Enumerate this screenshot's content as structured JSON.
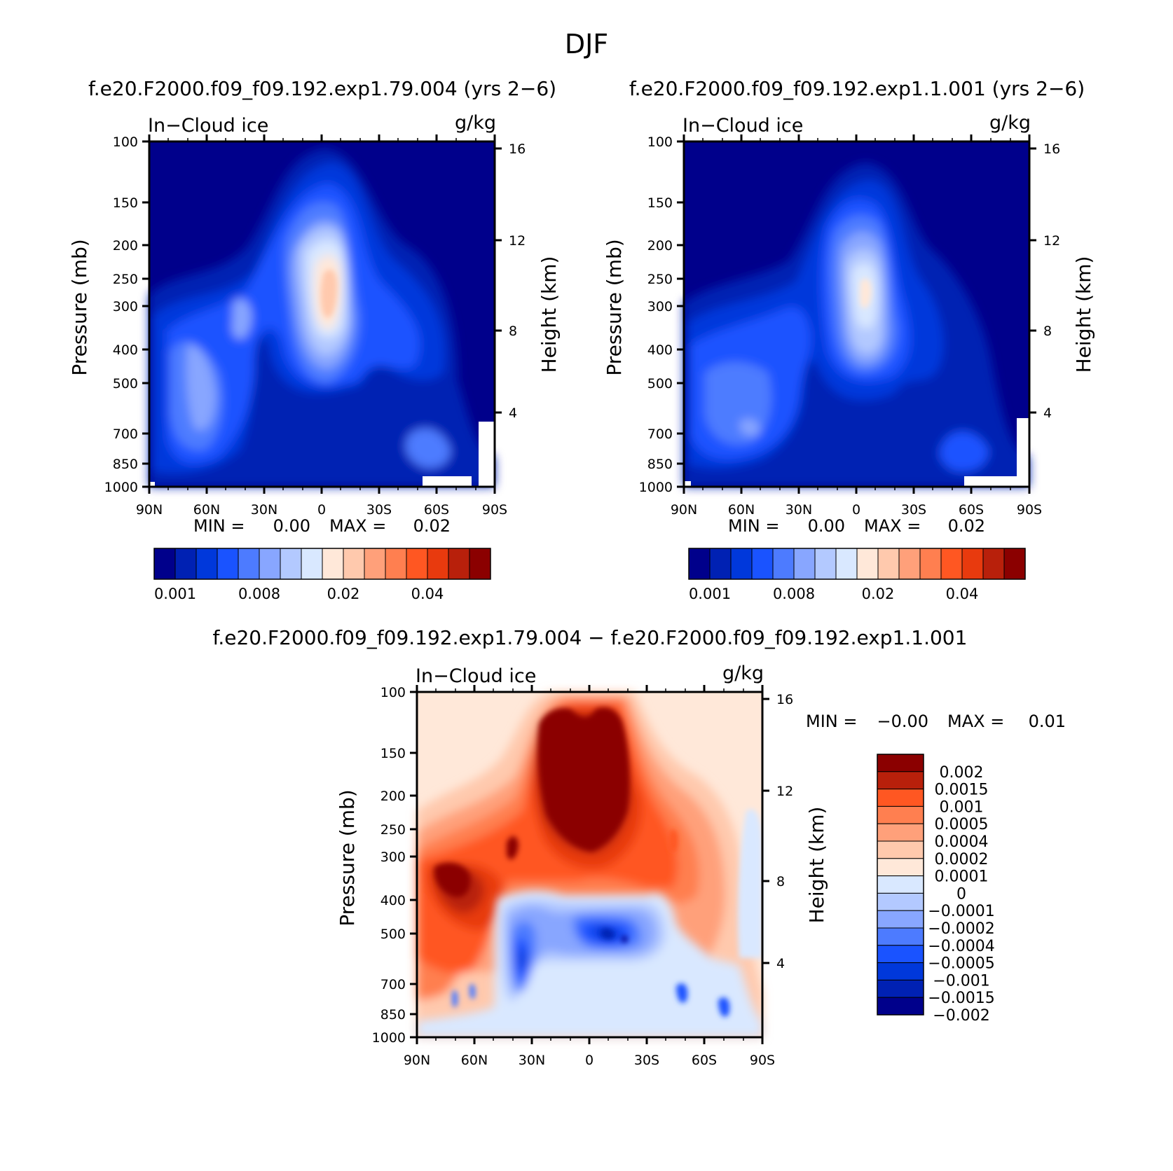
{
  "figure": {
    "season_title": "DJF",
    "min_label": "MIN =",
    "max_label": "MAX ="
  },
  "axis_text": {
    "pressure_label": "Pressure (mb)",
    "height_label": "Height (km)",
    "field_label": "In−Cloud ice",
    "units_label": "g/kg",
    "pressure_ticks": [
      "100",
      "150",
      "200",
      "250",
      "300",
      "400",
      "500",
      "700",
      "850",
      "1000"
    ],
    "height_ticks": [
      "16",
      "12",
      "8",
      "4"
    ],
    "lat_ticks": [
      "90N",
      "60N",
      "30N",
      "0",
      "30S",
      "60S",
      "90S"
    ]
  },
  "colors": {
    "blue_red_16": [
      "#00008b",
      "#0021b3",
      "#0038db",
      "#1a53ff",
      "#4d7bff",
      "#88a6ff",
      "#b3c9ff",
      "#d9e8ff",
      "#ffe8d9",
      "#ffc9ad",
      "#ffa07a",
      "#ff7f50",
      "#ff5722",
      "#e83a0e",
      "#b8200b",
      "#8b0000"
    ],
    "diff_15": [
      "#00008b",
      "#0021b3",
      "#0038db",
      "#1a53ff",
      "#4d7bff",
      "#88a6ff",
      "#b3c9ff",
      "#d9e8ff",
      "#ffe8d9",
      "#ffc9ad",
      "#ffa07a",
      "#ff7f50",
      "#ff5722",
      "#b8200b",
      "#8b0000"
    ]
  },
  "chart_data": [
    {
      "id": "panel1",
      "type": "heatmap",
      "title": "f.e20.F2000.f09_f09.192.exp1.79.004 (yrs 2−6)",
      "field": "In−Cloud ice",
      "units": "g/kg",
      "xlabel": "",
      "ylabel": "Pressure (mb)",
      "ylabel_right": "Height (km)",
      "x_ticks": [
        "90N",
        "60N",
        "30N",
        "0",
        "30S",
        "60S",
        "90S"
      ],
      "y_ticks": [
        100,
        150,
        200,
        250,
        300,
        400,
        500,
        700,
        850,
        1000
      ],
      "ylim": [
        1000,
        100
      ],
      "min": "0.00",
      "max": "0.02",
      "colorbar_labels": [
        "0.001",
        "0.008",
        "0.02",
        "0.04"
      ]
    },
    {
      "id": "panel2",
      "type": "heatmap",
      "title": "f.e20.F2000.f09_f09.192.exp1.1.001 (yrs 2−6)",
      "field": "In−Cloud ice",
      "units": "g/kg",
      "xlabel": "",
      "ylabel": "Pressure (mb)",
      "ylabel_right": "Height (km)",
      "x_ticks": [
        "90N",
        "60N",
        "30N",
        "0",
        "30S",
        "60S",
        "90S"
      ],
      "y_ticks": [
        100,
        150,
        200,
        250,
        300,
        400,
        500,
        700,
        850,
        1000
      ],
      "ylim": [
        1000,
        100
      ],
      "min": "0.00",
      "max": "0.02",
      "colorbar_labels": [
        "0.001",
        "0.008",
        "0.02",
        "0.04"
      ]
    },
    {
      "id": "panel3",
      "type": "heatmap",
      "title": "f.e20.F2000.f09_f09.192.exp1.79.004 − f.e20.F2000.f09_f09.192.exp1.1.001",
      "field": "In−Cloud ice",
      "units": "g/kg",
      "xlabel": "",
      "ylabel": "Pressure (mb)",
      "ylabel_right": "Height (km)",
      "x_ticks": [
        "90N",
        "60N",
        "30N",
        "0",
        "30S",
        "60S",
        "90S"
      ],
      "y_ticks": [
        100,
        150,
        200,
        250,
        300,
        400,
        500,
        700,
        850,
        1000
      ],
      "ylim": [
        1000,
        100
      ],
      "min": "−0.00",
      "max": "0.01",
      "colorbar_labels": [
        "0.002",
        "0.0015",
        "0.001",
        "0.0005",
        "0.0004",
        "0.0002",
        "0.0001",
        "0",
        "−0.0001",
        "−0.0002",
        "−0.0004",
        "−0.0005",
        "−0.001",
        "−0.0015",
        "−0.002"
      ]
    }
  ]
}
